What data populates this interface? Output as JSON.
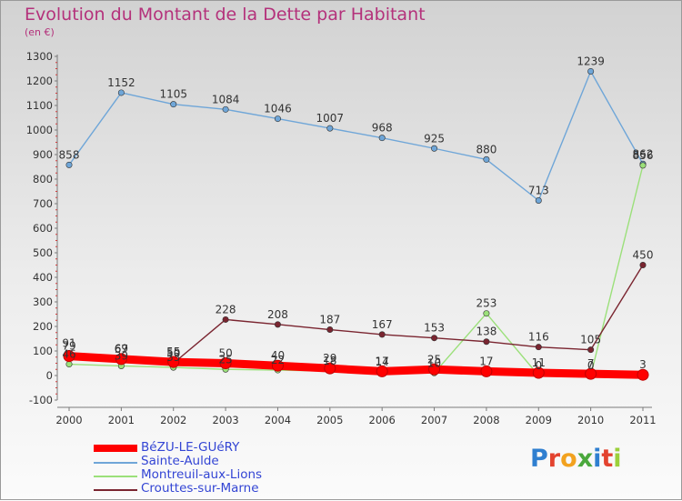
{
  "title": "Evolution du Montant de la Dette par Habitant",
  "subtitle": "(en €)",
  "logo_text": "Proxiti",
  "chart_data": {
    "type": "line",
    "title": "Evolution du Montant de la Dette par Habitant",
    "subtitle": "(en €)",
    "ylim": [
      -100,
      1300
    ],
    "yticks": [
      "-100",
      "0",
      "100",
      "200",
      "300",
      "400",
      "500",
      "600",
      "700",
      "800",
      "900",
      "1000",
      "1100",
      "1200",
      "1300"
    ],
    "categories": [
      "2000",
      "2001",
      "2002",
      "2003",
      "2004",
      "2005",
      "2006",
      "2007",
      "2008",
      "2009",
      "2010",
      "2011"
    ],
    "grid": false,
    "legend_position": "bottom-left",
    "series": [
      {
        "name": "BéZU-LE-GUéRY",
        "color": "#ff0000",
        "values": [
          79,
          67,
          55,
          50,
          40,
          29,
          17,
          25,
          17,
          11,
          7,
          3
        ]
      },
      {
        "name": "Sainte-Aulde",
        "color": "#6fa6d8",
        "values": [
          858,
          1152,
          1105,
          1084,
          1046,
          1007,
          968,
          925,
          880,
          713,
          1239,
          862
        ]
      },
      {
        "name": "Montreuil-aux-Lions",
        "color": "#9be07a",
        "values": [
          46,
          39,
          33,
          25,
          22,
          18,
          14,
          10,
          253,
          0,
          0,
          856
        ]
      },
      {
        "name": "Crouttes-sur-Marne",
        "color": "#7a2530",
        "values": [
          91,
          69,
          50,
          228,
          208,
          187,
          167,
          153,
          138,
          116,
          105,
          450
        ]
      }
    ]
  }
}
